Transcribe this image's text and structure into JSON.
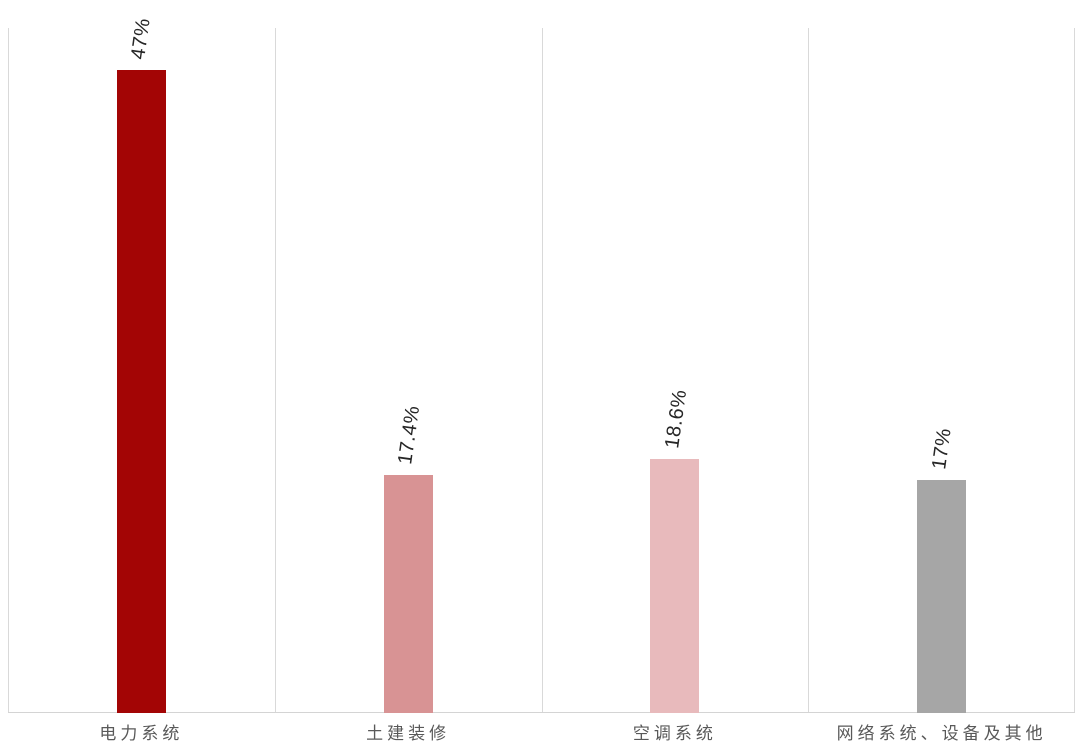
{
  "chart_data": {
    "type": "bar",
    "categories": [
      "电力系统",
      "土建装修",
      "空调系统",
      "网络系统、设备及其他"
    ],
    "values": [
      47,
      17.4,
      18.6,
      17
    ],
    "value_labels": [
      "47%",
      "17.4%",
      "18.6%",
      "17%"
    ],
    "bar_colors": [
      "#a30505",
      "#d89394",
      "#e8babc",
      "#a6a6a6"
    ],
    "title": "",
    "xlabel": "",
    "ylabel": "",
    "ylim": [
      0,
      50
    ],
    "legend": "none",
    "grid": "vertical category separators only",
    "gridline_color": "#d9d9d9",
    "axis_line_color": "#d4d4d4",
    "value_label_color": "#262626",
    "category_label_color": "#595959",
    "value_label_rotation_deg": -82,
    "background_color": "#ffffff"
  }
}
